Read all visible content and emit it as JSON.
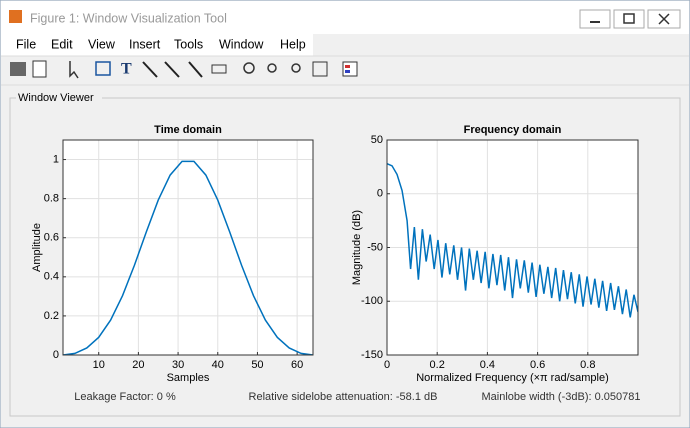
{
  "window": {
    "title": "Figure 1: Window Visualization Tool"
  },
  "menu": [
    "File",
    "Edit",
    "View",
    "Insert",
    "Tools",
    "Window",
    "Help"
  ],
  "panel_title": "Window Viewer",
  "chart_data": [
    {
      "type": "line",
      "title": "Time domain",
      "xlabel": "Samples",
      "ylabel": "Amplitude",
      "x": [
        1,
        4,
        7,
        10,
        13,
        16,
        19,
        22,
        25,
        28,
        31,
        34,
        37,
        40,
        43,
        46,
        49,
        52,
        55,
        58,
        61,
        64
      ],
      "series": [
        {
          "color": "#0072bd",
          "values": [
            0,
            0.0083,
            0.0361,
            0.0904,
            0.1787,
            0.3035,
            0.4592,
            0.63,
            0.7925,
            0.9204,
            0.9908,
            0.9908,
            0.9204,
            0.7925,
            0.63,
            0.4592,
            0.3035,
            0.1787,
            0.0904,
            0.0361,
            0.0083,
            0
          ]
        }
      ],
      "xlim": [
        1,
        64
      ],
      "xticks": [
        10,
        20,
        30,
        40,
        50,
        60
      ],
      "ylim": [
        0,
        1.1
      ],
      "yticks": [
        0,
        0.2,
        0.4,
        0.6,
        0.8,
        1
      ],
      "grid": true
    },
    {
      "type": "line",
      "title": "Frequency domain",
      "xlabel": "Normalized Frequency  (×π rad/sample)",
      "ylabel": "Magnitude (dB)",
      "x": [
        0,
        0.02,
        0.04,
        0.06,
        0.08,
        0.094,
        0.109,
        0.125,
        0.141,
        0.156,
        0.172,
        0.188,
        0.203,
        0.219,
        0.234,
        0.25,
        0.266,
        0.281,
        0.297,
        0.313,
        0.328,
        0.344,
        0.359,
        0.375,
        0.391,
        0.406,
        0.422,
        0.438,
        0.453,
        0.469,
        0.484,
        0.5,
        0.516,
        0.531,
        0.547,
        0.563,
        0.578,
        0.594,
        0.609,
        0.625,
        0.641,
        0.656,
        0.672,
        0.688,
        0.703,
        0.719,
        0.734,
        0.75,
        0.766,
        0.781,
        0.797,
        0.813,
        0.828,
        0.844,
        0.859,
        0.875,
        0.891,
        0.906,
        0.922,
        0.938,
        0.953,
        0.969,
        0.984,
        1.0
      ],
      "series": [
        {
          "color": "#0072bd",
          "values": [
            28,
            26,
            18,
            3,
            -25,
            -70,
            -31,
            -80,
            -33,
            -63,
            -38,
            -70,
            -43,
            -78,
            -46,
            -75,
            -48,
            -80,
            -50,
            -90,
            -51,
            -80,
            -53,
            -83,
            -54,
            -88,
            -56,
            -85,
            -57,
            -90,
            -59,
            -97,
            -61,
            -88,
            -62,
            -92,
            -64,
            -96,
            -66,
            -93,
            -68,
            -97,
            -69,
            -100,
            -71,
            -98,
            -73,
            -102,
            -75,
            -105,
            -77,
            -103,
            -79,
            -106,
            -81,
            -109,
            -83,
            -108,
            -86,
            -112,
            -89,
            -115,
            -94,
            -110
          ]
        }
      ],
      "xlim": [
        0,
        1
      ],
      "xticks": [
        0,
        0.2,
        0.4,
        0.6,
        0.8
      ],
      "ylim": [
        -150,
        50
      ],
      "yticks": [
        -150,
        -100,
        -50,
        0,
        50
      ],
      "grid": true
    }
  ],
  "footer": [
    "Leakage Factor: 0 %",
    "Relative sidelobe attenuation: -58.1 dB",
    "Mainlobe width (-3dB): 0.050781"
  ]
}
